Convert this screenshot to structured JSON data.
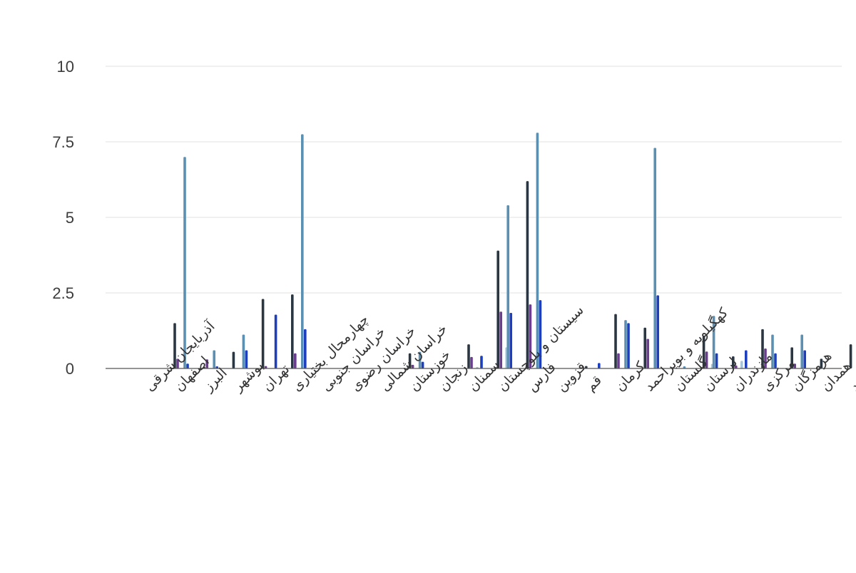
{
  "chart_data": {
    "type": "bar",
    "title": "",
    "xlabel": "",
    "ylabel": "",
    "ylim": [
      0,
      10
    ],
    "yticks": [
      "0",
      "2.5",
      "5",
      "7.5",
      "10"
    ],
    "ytick_values": [
      0,
      2.5,
      5,
      7.5,
      10
    ],
    "grid": true,
    "legend": "none",
    "categories": [
      "آذربایجان شرقی",
      "اصفهان",
      "البرز",
      "بوشهر",
      "تهران",
      "چهارمحال بختیاری",
      "خراسان جنوبی",
      "خراسان رضوی",
      "خراسان شمالی",
      "خوزستان",
      "زنجان",
      "سمنان",
      "سیستان و بلوچستان",
      "فارس",
      "قزوین",
      "قم",
      "کرمان",
      "کهگیلویه و بویراحمد",
      "گلستان",
      "لرستان",
      "مازندران",
      "مرکزی",
      "هرمزگان",
      "همدان",
      "یزد"
    ],
    "series": [
      {
        "color": "#2a3642",
        "values": [
          0,
          1.5,
          0.05,
          0.55,
          2.3,
          2.45,
          0,
          0,
          0,
          0.5,
          0,
          0.8,
          3.9,
          6.2,
          0,
          0.08,
          1.8,
          1.35,
          0,
          1.07,
          0.4,
          1.3,
          0.7,
          0.32,
          0.8
        ]
      },
      {
        "color": "#6a3d8f",
        "values": [
          0,
          0.32,
          0.3,
          0,
          0.08,
          0.5,
          0,
          0,
          0,
          0.12,
          0,
          0.38,
          1.88,
          2.12,
          0,
          0,
          0.5,
          0.98,
          0,
          0.56,
          0.1,
          0.66,
          0.16,
          0,
          0
        ]
      },
      {
        "color": "#e8e8ea",
        "values": [
          0,
          0,
          0,
          0,
          0,
          0,
          0,
          0,
          0,
          0,
          0,
          0,
          0,
          0,
          0,
          0,
          0,
          0,
          0,
          0,
          0,
          0,
          0,
          0,
          0
        ]
      },
      {
        "color": "#a7c4d8",
        "values": [
          0,
          0,
          0,
          0,
          0,
          0,
          0,
          0,
          0,
          0,
          0,
          0.05,
          0.7,
          0,
          0,
          0,
          0,
          0,
          0,
          0.15,
          0.25,
          0,
          0,
          0,
          0
        ]
      },
      {
        "color": "#5b90b3",
        "values": [
          0,
          7.0,
          0.6,
          1.12,
          0,
          7.75,
          0,
          0,
          0,
          0.55,
          0,
          0,
          5.4,
          7.8,
          0,
          0,
          1.6,
          7.3,
          0.07,
          1.74,
          0,
          1.12,
          1.12,
          0,
          0
        ]
      },
      {
        "color": "#1d3fbd",
        "values": [
          0,
          0.16,
          0.07,
          0.6,
          1.78,
          1.3,
          0,
          0,
          0,
          0.22,
          0,
          0.42,
          1.84,
          2.26,
          0,
          0.18,
          1.5,
          2.42,
          0,
          0.5,
          0.6,
          0.5,
          0.6,
          0,
          0.08
        ]
      }
    ]
  }
}
